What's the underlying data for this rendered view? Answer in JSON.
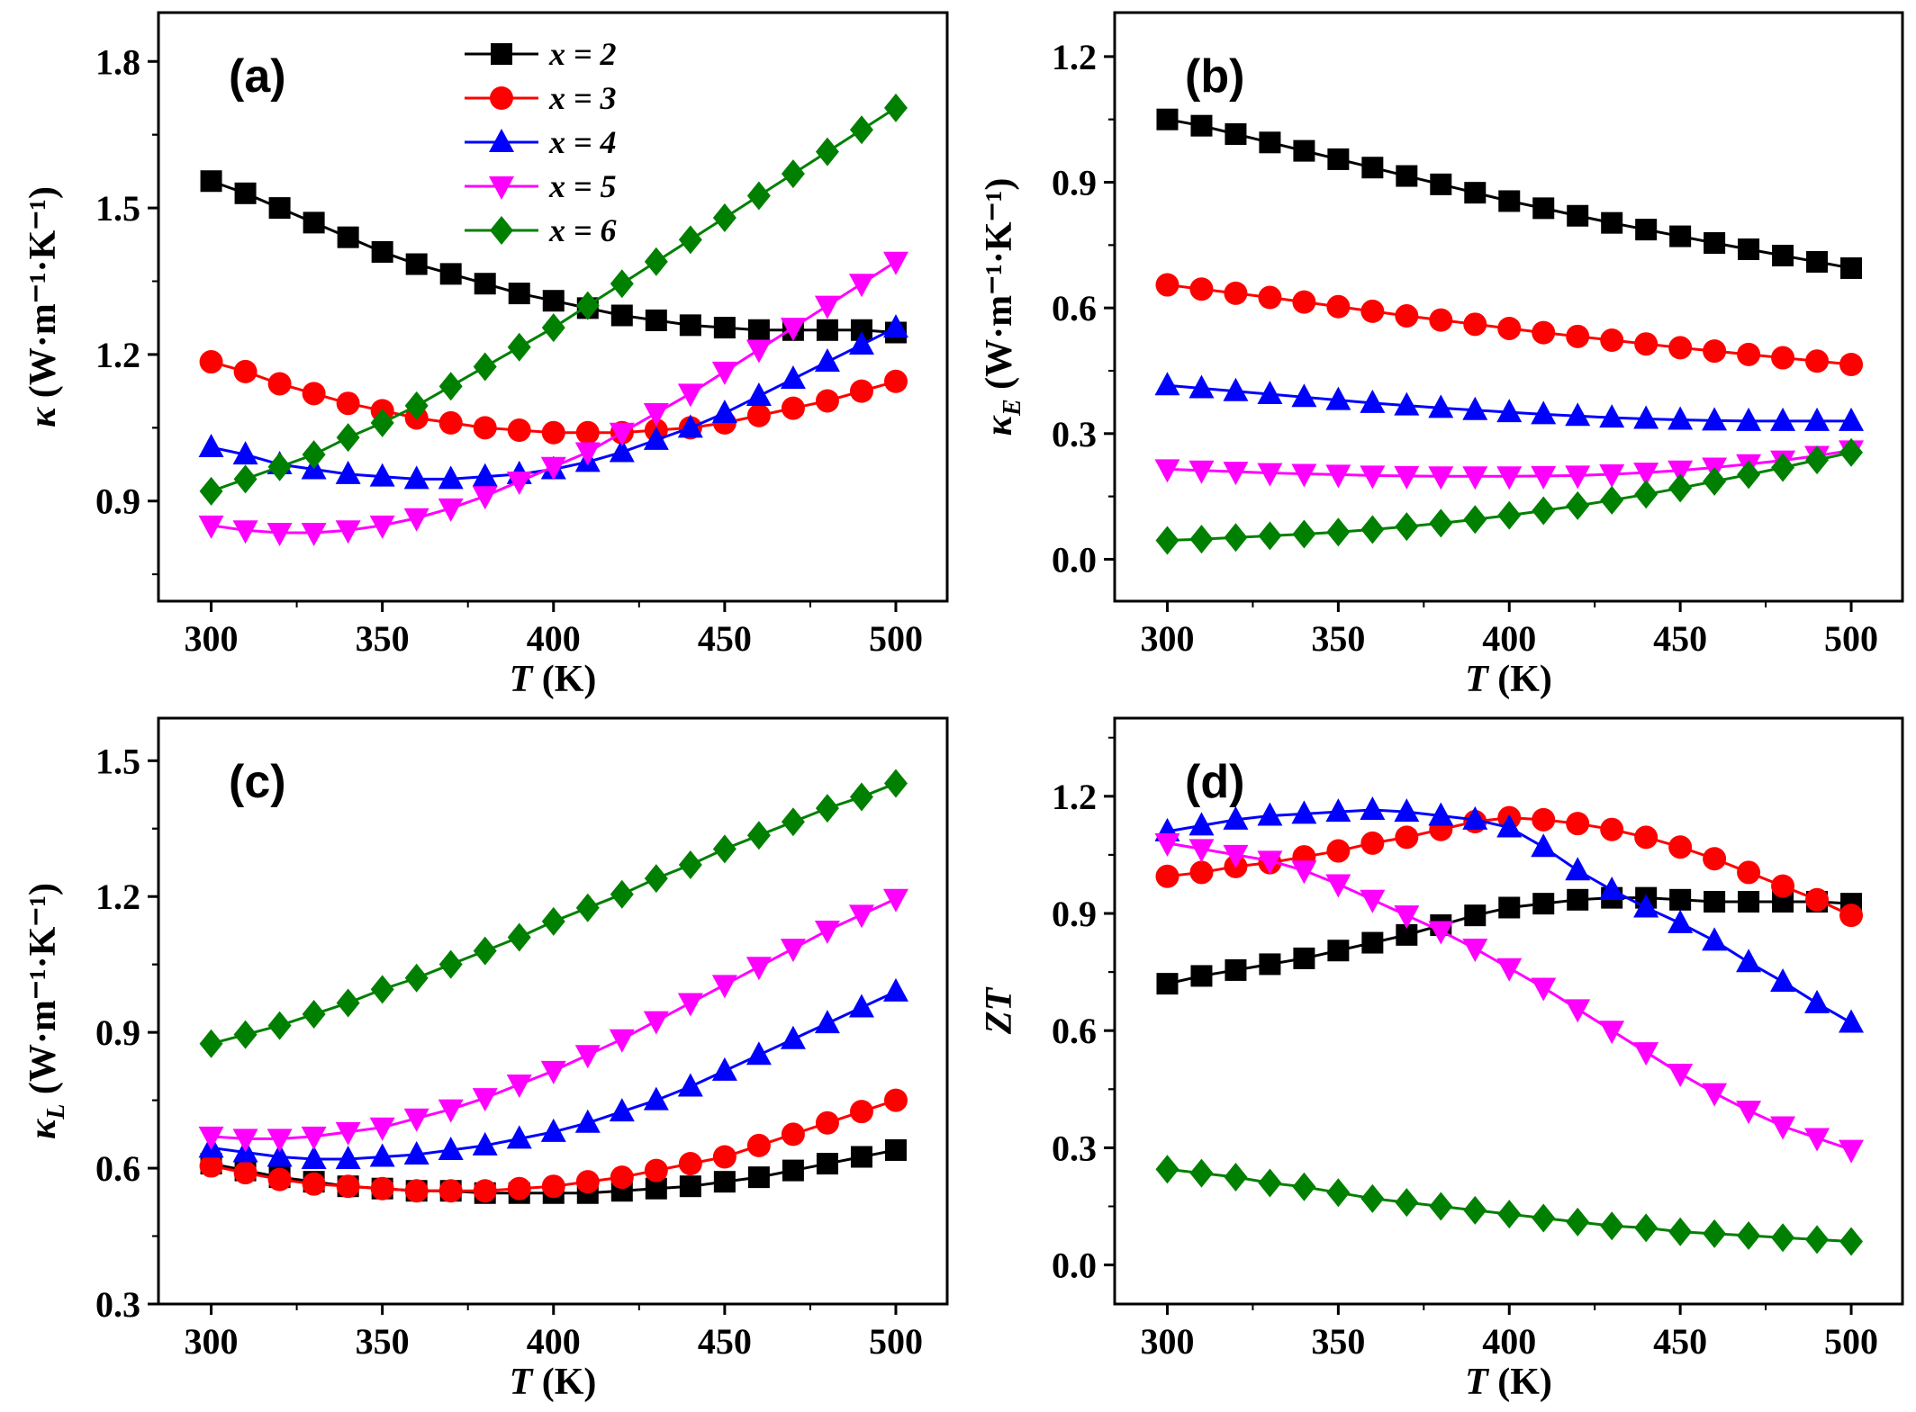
{
  "chart_data": [
    {
      "type": "line",
      "panel_label": "(a)",
      "xlabel": "T (K)",
      "ylabel": "κ (W·m⁻¹·K⁻¹)",
      "ylabel_main": "κ",
      "ylabel_sub": "",
      "xlim": [
        284.6,
        515
      ],
      "ylim": [
        0.695,
        1.9
      ],
      "xticks": [
        300,
        350,
        400,
        450,
        500
      ],
      "yticks": [
        0.9,
        1.2,
        1.5,
        1.8
      ],
      "ytick_labels": [
        "0.9",
        "1.2",
        "1.5",
        "1.8"
      ],
      "legend": "top-center",
      "x": [
        300,
        310,
        320,
        330,
        340,
        350,
        360,
        370,
        380,
        390,
        400,
        410,
        420,
        430,
        440,
        450,
        460,
        470,
        480,
        490,
        500
      ],
      "series": [
        {
          "name": "x = 2",
          "values": [
            1.555,
            1.53,
            1.5,
            1.47,
            1.44,
            1.41,
            1.385,
            1.365,
            1.345,
            1.325,
            1.31,
            1.295,
            1.28,
            1.27,
            1.26,
            1.255,
            1.25,
            1.25,
            1.25,
            1.25,
            1.245
          ]
        },
        {
          "name": "x = 3",
          "values": [
            1.185,
            1.165,
            1.14,
            1.12,
            1.1,
            1.085,
            1.07,
            1.06,
            1.05,
            1.045,
            1.04,
            1.04,
            1.04,
            1.045,
            1.05,
            1.06,
            1.075,
            1.09,
            1.105,
            1.125,
            1.145
          ]
        },
        {
          "name": "x = 4",
          "values": [
            1.01,
            0.995,
            0.975,
            0.965,
            0.955,
            0.95,
            0.945,
            0.945,
            0.95,
            0.955,
            0.965,
            0.98,
            1.0,
            1.025,
            1.05,
            1.08,
            1.115,
            1.15,
            1.185,
            1.22,
            1.255
          ]
        },
        {
          "name": "x = 5",
          "values": [
            0.85,
            0.84,
            0.835,
            0.835,
            0.84,
            0.85,
            0.865,
            0.885,
            0.91,
            0.94,
            0.97,
            1.0,
            1.04,
            1.08,
            1.12,
            1.165,
            1.21,
            1.255,
            1.3,
            1.345,
            1.39
          ]
        },
        {
          "name": "x = 6",
          "values": [
            0.92,
            0.945,
            0.97,
            0.995,
            1.03,
            1.06,
            1.095,
            1.135,
            1.175,
            1.215,
            1.255,
            1.3,
            1.345,
            1.39,
            1.435,
            1.48,
            1.525,
            1.57,
            1.615,
            1.66,
            1.705
          ]
        }
      ]
    },
    {
      "type": "line",
      "panel_label": "(b)",
      "xlabel": "T (K)",
      "ylabel_main": "κ",
      "ylabel_sub": "E",
      "ylabel_units": "(W·m⁻¹·K⁻¹)",
      "xlim": [
        284.6,
        515
      ],
      "ylim": [
        -0.1,
        1.305
      ],
      "xticks": [
        300,
        350,
        400,
        450,
        500
      ],
      "yticks": [
        0.0,
        0.3,
        0.6,
        0.9,
        1.2
      ],
      "ytick_labels": [
        "0.0",
        "0.3",
        "0.6",
        "0.9",
        "1.2"
      ],
      "x": [
        300,
        310,
        320,
        330,
        340,
        350,
        360,
        370,
        380,
        390,
        400,
        410,
        420,
        430,
        440,
        450,
        460,
        470,
        480,
        490,
        500
      ],
      "series": [
        {
          "name": "x = 2",
          "values": [
            1.05,
            1.035,
            1.015,
            0.995,
            0.975,
            0.955,
            0.935,
            0.915,
            0.895,
            0.875,
            0.855,
            0.838,
            0.82,
            0.803,
            0.787,
            0.771,
            0.755,
            0.74,
            0.725,
            0.71,
            0.695
          ]
        },
        {
          "name": "x = 3",
          "values": [
            0.655,
            0.645,
            0.635,
            0.625,
            0.614,
            0.603,
            0.592,
            0.581,
            0.571,
            0.561,
            0.551,
            0.541,
            0.532,
            0.523,
            0.514,
            0.505,
            0.497,
            0.489,
            0.481,
            0.473,
            0.465
          ]
        },
        {
          "name": "x = 4",
          "values": [
            0.415,
            0.408,
            0.401,
            0.394,
            0.387,
            0.38,
            0.373,
            0.367,
            0.361,
            0.356,
            0.351,
            0.346,
            0.342,
            0.338,
            0.335,
            0.333,
            0.331,
            0.33,
            0.33,
            0.33,
            0.33
          ]
        },
        {
          "name": "x = 5",
          "values": [
            0.215,
            0.212,
            0.209,
            0.206,
            0.204,
            0.202,
            0.2,
            0.199,
            0.198,
            0.198,
            0.198,
            0.199,
            0.2,
            0.203,
            0.207,
            0.212,
            0.219,
            0.227,
            0.236,
            0.247,
            0.26
          ]
        },
        {
          "name": "x = 6",
          "values": [
            0.045,
            0.048,
            0.052,
            0.056,
            0.06,
            0.065,
            0.071,
            0.078,
            0.086,
            0.095,
            0.105,
            0.116,
            0.128,
            0.141,
            0.155,
            0.17,
            0.186,
            0.202,
            0.219,
            0.237,
            0.255
          ]
        }
      ]
    },
    {
      "type": "line",
      "panel_label": "(c)",
      "xlabel": "T (K)",
      "ylabel_main": "κ",
      "ylabel_sub": "L",
      "ylabel_units": "(W·m⁻¹·K⁻¹)",
      "xlim": [
        284.6,
        515
      ],
      "ylim": [
        0.3,
        1.594
      ],
      "xticks": [
        300,
        350,
        400,
        450,
        500
      ],
      "yticks": [
        0.3,
        0.6,
        0.9,
        1.2,
        1.5
      ],
      "ytick_labels": [
        "0.3",
        "0.6",
        "0.9",
        "1.2",
        "1.5"
      ],
      "x": [
        300,
        310,
        320,
        330,
        340,
        350,
        360,
        370,
        380,
        390,
        400,
        410,
        420,
        430,
        440,
        450,
        460,
        470,
        480,
        490,
        500
      ],
      "series": [
        {
          "name": "x = 2",
          "values": [
            0.61,
            0.595,
            0.58,
            0.57,
            0.56,
            0.555,
            0.55,
            0.55,
            0.545,
            0.545,
            0.545,
            0.545,
            0.55,
            0.555,
            0.56,
            0.57,
            0.58,
            0.595,
            0.61,
            0.625,
            0.64
          ]
        },
        {
          "name": "x = 3",
          "values": [
            0.605,
            0.59,
            0.575,
            0.565,
            0.56,
            0.555,
            0.55,
            0.55,
            0.55,
            0.555,
            0.56,
            0.57,
            0.58,
            0.595,
            0.61,
            0.625,
            0.65,
            0.675,
            0.7,
            0.725,
            0.75
          ]
        },
        {
          "name": "x = 4",
          "values": [
            0.645,
            0.635,
            0.625,
            0.62,
            0.62,
            0.625,
            0.63,
            0.64,
            0.65,
            0.665,
            0.68,
            0.7,
            0.725,
            0.75,
            0.78,
            0.815,
            0.85,
            0.885,
            0.92,
            0.955,
            0.99
          ]
        },
        {
          "name": "x = 5",
          "values": [
            0.67,
            0.665,
            0.665,
            0.67,
            0.68,
            0.69,
            0.71,
            0.73,
            0.755,
            0.785,
            0.815,
            0.85,
            0.885,
            0.925,
            0.965,
            1.005,
            1.045,
            1.085,
            1.125,
            1.16,
            1.195
          ]
        },
        {
          "name": "x = 6",
          "values": [
            0.875,
            0.895,
            0.915,
            0.94,
            0.965,
            0.995,
            1.02,
            1.05,
            1.08,
            1.11,
            1.145,
            1.175,
            1.205,
            1.24,
            1.27,
            1.305,
            1.335,
            1.365,
            1.395,
            1.42,
            1.45
          ]
        }
      ]
    },
    {
      "type": "line",
      "panel_label": "(d)",
      "xlabel": "T (K)",
      "ylabel_main": "ZT",
      "ylabel_sub": "",
      "xlim": [
        284.6,
        515
      ],
      "ylim": [
        -0.1,
        1.4
      ],
      "xticks": [
        300,
        350,
        400,
        450,
        500
      ],
      "yticks": [
        0.0,
        0.3,
        0.6,
        0.9,
        1.2
      ],
      "ytick_labels": [
        "0.0",
        "0.3",
        "0.6",
        "0.9",
        "1.2"
      ],
      "x": [
        300,
        310,
        320,
        330,
        340,
        350,
        360,
        370,
        380,
        390,
        400,
        410,
        420,
        430,
        440,
        450,
        460,
        470,
        480,
        490,
        500
      ],
      "series": [
        {
          "name": "x = 2",
          "values": [
            0.72,
            0.74,
            0.755,
            0.77,
            0.785,
            0.805,
            0.825,
            0.845,
            0.87,
            0.895,
            0.915,
            0.925,
            0.935,
            0.94,
            0.94,
            0.935,
            0.93,
            0.93,
            0.93,
            0.93,
            0.925
          ]
        },
        {
          "name": "x = 3",
          "values": [
            0.995,
            1.005,
            1.02,
            1.03,
            1.045,
            1.06,
            1.08,
            1.095,
            1.115,
            1.135,
            1.145,
            1.14,
            1.13,
            1.115,
            1.095,
            1.07,
            1.04,
            1.005,
            0.97,
            0.935,
            0.895
          ]
        },
        {
          "name": "x = 4",
          "values": [
            1.11,
            1.125,
            1.14,
            1.15,
            1.155,
            1.16,
            1.165,
            1.16,
            1.15,
            1.14,
            1.12,
            1.07,
            1.01,
            0.96,
            0.915,
            0.875,
            0.83,
            0.775,
            0.725,
            0.67,
            0.62
          ]
        },
        {
          "name": "x = 5",
          "values": [
            1.08,
            1.065,
            1.05,
            1.035,
            1.01,
            0.975,
            0.935,
            0.895,
            0.855,
            0.81,
            0.76,
            0.71,
            0.655,
            0.6,
            0.545,
            0.49,
            0.44,
            0.395,
            0.355,
            0.325,
            0.295
          ]
        },
        {
          "name": "x = 6",
          "values": [
            0.245,
            0.235,
            0.225,
            0.21,
            0.2,
            0.185,
            0.17,
            0.16,
            0.15,
            0.14,
            0.13,
            0.12,
            0.11,
            0.1,
            0.095,
            0.085,
            0.08,
            0.075,
            0.07,
            0.065,
            0.06
          ]
        }
      ]
    }
  ],
  "ylabel_units": "(W·m⁻¹·K⁻¹)",
  "series_style": [
    {
      "color": "#000000",
      "marker": "square"
    },
    {
      "color": "#ff0000",
      "marker": "circle"
    },
    {
      "color": "#0000ff",
      "marker": "triangle-up"
    },
    {
      "color": "#ff00ff",
      "marker": "triangle-down"
    },
    {
      "color": "#008000",
      "marker": "diamond"
    }
  ]
}
